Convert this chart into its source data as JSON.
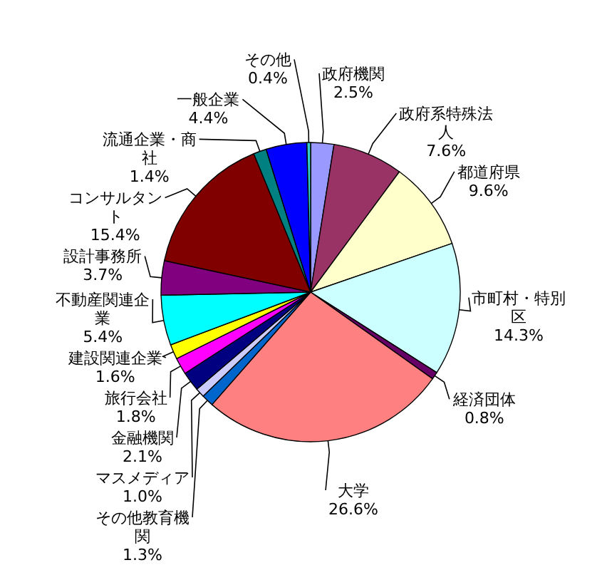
{
  "chart_data": {
    "type": "pie",
    "categories": [
      "政府機関",
      "政府系特殊法人",
      "都道府県",
      "市町村・特別区",
      "経済団体",
      "大学",
      "その他教育機関",
      "マスメディア",
      "金融機関",
      "旅行会社",
      "建設関連企業",
      "不動産関連企業",
      "設計事務所",
      "コンサルタント",
      "流通企業・商社",
      "一般企業",
      "その他"
    ],
    "values": [
      2.5,
      7.6,
      9.6,
      14.3,
      0.8,
      26.6,
      1.3,
      1.0,
      2.1,
      1.8,
      1.6,
      5.4,
      3.7,
      15.4,
      1.4,
      4.4,
      0.4
    ],
    "colors": [
      "#9999ff",
      "#993366",
      "#ffffcc",
      "#ccffff",
      "#660066",
      "#ff8080",
      "#0066cc",
      "#ccccff",
      "#000080",
      "#ff00ff",
      "#ffff00",
      "#00ffff",
      "#800080",
      "#800000",
      "#008080",
      "#0000ff",
      "#33cccc"
    ],
    "value_labels": [
      "2.5%",
      "7.6%",
      "9.6%",
      "14.3%",
      "0.8%",
      "26.6%",
      "1.3%",
      "1.0%",
      "2.1%",
      "1.8%",
      "1.6%",
      "5.4%",
      "3.7%",
      "15.4%",
      "1.4%",
      "4.4%",
      "0.4%"
    ]
  }
}
